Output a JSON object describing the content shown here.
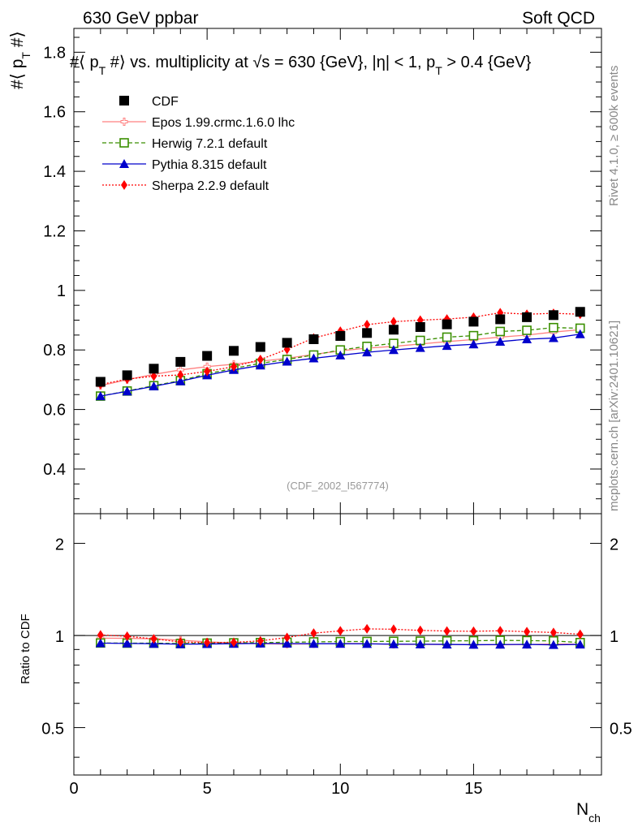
{
  "header": {
    "left": "630 GeV ppbar",
    "right": "Soft QCD"
  },
  "side": {
    "right_top": "Rivet 4.1.0, ≥ 600k events",
    "right_bottom": "mcplots.cern.ch [arXiv:2401.10621]"
  },
  "colors": {
    "cdf": "#000000",
    "epos": "#ff8080",
    "herwig": "#3a8f00",
    "pythia": "#0000cc",
    "sherpa": "#ff0000"
  },
  "chart_data": {
    "type": "scatter",
    "title": "#⟨ p_T #⟩ vs. multiplicity at √s = 630 {GeV}, |η| < 1, p_T > 0.4 {GeV}",
    "title_parts": {
      "a": "#⟨ p",
      "a_sub": "T",
      "b": " #⟩ vs. multiplicity at ",
      "sqrt": "√",
      "c": "s = 630 {GeV}, |η| < 1, p",
      "c_sub": "T",
      "d": " > 0.4 {GeV}"
    },
    "ylabel": "#⟨ p_T #⟩",
    "ylabel_parts": {
      "a": "#⟨ p",
      "sub": "T",
      "b": " #⟩"
    },
    "xlabel": "N_ch",
    "xlabel_parts": {
      "main": "N",
      "sub": "ch"
    },
    "ratio_ylabel": "Ratio to CDF",
    "watermark": "(CDF_2002_I567774)",
    "xlim": [
      0,
      19.8
    ],
    "ylim": [
      0.25,
      1.88
    ],
    "ratio_ylim": [
      0.35,
      2.5
    ],
    "x_ticks": [
      0,
      5,
      10,
      15
    ],
    "y_ticks": [
      0.4,
      0.6,
      0.8,
      1,
      1.2,
      1.4,
      1.6,
      1.8
    ],
    "ratio_ticks": [
      0.5,
      1,
      2
    ],
    "x": [
      1,
      2,
      3,
      4,
      5,
      6,
      7,
      8,
      9,
      10,
      11,
      12,
      13,
      14,
      15,
      16,
      17,
      18,
      19
    ],
    "series": [
      {
        "name": "CDF",
        "key": "cdf",
        "style": "data",
        "values": [
          0.693,
          0.715,
          0.737,
          0.76,
          0.78,
          0.797,
          0.81,
          0.824,
          0.836,
          0.847,
          0.857,
          0.868,
          0.877,
          0.886,
          0.895,
          0.903,
          0.91,
          0.917,
          0.928
        ],
        "ratio": [
          1,
          1,
          1,
          1,
          1,
          1,
          1,
          1,
          1,
          1,
          1,
          1,
          1,
          1,
          1,
          1,
          1,
          1,
          1
        ]
      },
      {
        "name": "Epos 1.99.crmc.1.6.0 lhc",
        "key": "epos",
        "style": "line",
        "marker": "cross",
        "values": [
          0.68,
          0.7,
          0.718,
          0.733,
          0.744,
          0.752,
          0.762,
          0.772,
          0.785,
          0.797,
          0.806,
          0.812,
          0.82,
          0.828,
          0.835,
          0.843,
          0.85,
          0.86,
          0.868
        ],
        "ratio": [
          0.98,
          0.979,
          0.975,
          0.965,
          0.953,
          0.945,
          0.94,
          0.937,
          0.939,
          0.941,
          0.941,
          0.935,
          0.935,
          0.935,
          0.933,
          0.933,
          0.934,
          0.938,
          0.936
        ]
      },
      {
        "name": "Herwig 7.2.1 default",
        "key": "herwig",
        "style": "dashed",
        "marker": "open-square",
        "values": [
          0.645,
          0.662,
          0.68,
          0.697,
          0.72,
          0.738,
          0.755,
          0.768,
          0.783,
          0.8,
          0.812,
          0.822,
          0.832,
          0.843,
          0.848,
          0.862,
          0.866,
          0.875,
          0.873
        ],
        "ratio": [
          0.945,
          0.944,
          0.944,
          0.941,
          0.944,
          0.946,
          0.948,
          0.95,
          0.953,
          0.955,
          0.956,
          0.957,
          0.958,
          0.96,
          0.961,
          0.964,
          0.962,
          0.96,
          0.948
        ]
      },
      {
        "name": "Pythia 8.315 default",
        "key": "pythia",
        "style": "line",
        "marker": "triangle",
        "values": [
          0.645,
          0.661,
          0.678,
          0.695,
          0.715,
          0.733,
          0.748,
          0.761,
          0.772,
          0.782,
          0.792,
          0.8,
          0.807,
          0.814,
          0.819,
          0.828,
          0.836,
          0.84,
          0.853
        ],
        "ratio": [
          0.944,
          0.942,
          0.94,
          0.937,
          0.938,
          0.94,
          0.942,
          0.941,
          0.94,
          0.94,
          0.939,
          0.937,
          0.936,
          0.935,
          0.933,
          0.934,
          0.935,
          0.932,
          0.935
        ]
      },
      {
        "name": "Sherpa 2.2.9 default",
        "key": "sherpa",
        "style": "dotted",
        "marker": "diamond",
        "values": [
          0.684,
          0.702,
          0.712,
          0.716,
          0.728,
          0.744,
          0.768,
          0.802,
          0.84,
          0.863,
          0.885,
          0.895,
          0.9,
          0.904,
          0.91,
          0.925,
          0.92,
          0.923,
          0.92
        ],
        "ratio": [
          1.004,
          0.994,
          0.975,
          0.952,
          0.948,
          0.95,
          0.96,
          0.985,
          1.018,
          1.035,
          1.051,
          1.048,
          1.039,
          1.034,
          1.032,
          1.036,
          1.029,
          1.023,
          1.009
        ]
      }
    ]
  }
}
